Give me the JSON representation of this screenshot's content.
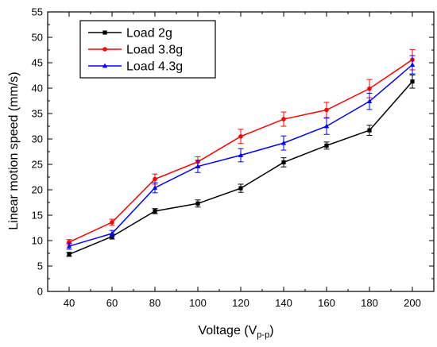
{
  "chart_data": {
    "type": "line",
    "xlabel": "Voltage (V",
    "xlabel_sub": "p-p",
    "xlabel_close": ")",
    "ylabel": "Linear motion speed (mm/s)",
    "x": [
      40,
      60,
      80,
      100,
      120,
      140,
      160,
      180,
      200
    ],
    "xlim": [
      30,
      210
    ],
    "ylim": [
      0,
      55
    ],
    "xticks": [
      40,
      60,
      80,
      100,
      120,
      140,
      160,
      180,
      200
    ],
    "yticks": [
      0,
      5,
      10,
      15,
      20,
      25,
      30,
      35,
      40,
      45,
      50,
      55
    ],
    "grid": false,
    "legend": "top-left",
    "series": [
      {
        "name": "Load 2g",
        "color": "#000000",
        "marker": "square",
        "values": [
          7.3,
          10.8,
          15.8,
          17.3,
          20.3,
          25.4,
          28.7,
          31.7,
          41.3
        ],
        "errors": [
          0.4,
          0.5,
          0.5,
          0.7,
          0.8,
          0.9,
          0.7,
          1.0,
          1.3
        ]
      },
      {
        "name": "Load 3.8g",
        "color": "#ff0000",
        "marker": "circle",
        "values": [
          9.7,
          13.6,
          22.1,
          25.5,
          30.5,
          33.9,
          35.7,
          39.9,
          45.6
        ],
        "errors": [
          0.5,
          0.6,
          1.0,
          1.0,
          1.4,
          1.4,
          1.5,
          1.8,
          2.0
        ]
      },
      {
        "name": "Load 4.3g",
        "color": "#0000ff",
        "marker": "triangle",
        "values": [
          8.9,
          11.4,
          20.4,
          24.6,
          26.8,
          29.2,
          32.5,
          37.4,
          44.6
        ],
        "errors": [
          0.6,
          0.6,
          1.0,
          1.2,
          1.3,
          1.4,
          1.6,
          1.6,
          1.8
        ]
      }
    ]
  }
}
